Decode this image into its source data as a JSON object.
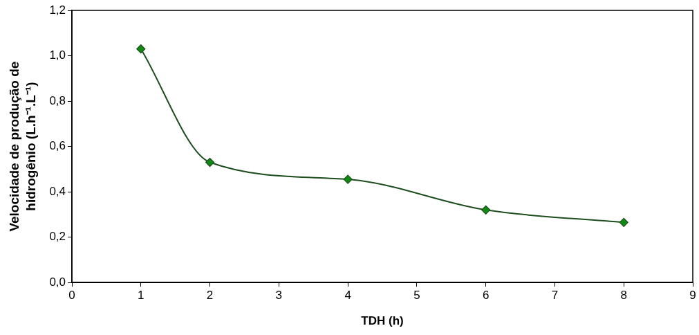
{
  "chart_data": {
    "type": "line",
    "xlabel": "TDH (h)",
    "ylabel": "Velocidade de produção de hidrogênio (L.h⁻¹.L⁻¹)",
    "x": [
      1,
      2,
      4,
      6,
      8
    ],
    "series": [
      {
        "color": "#1e4d1e",
        "values": [
          1.03,
          0.53,
          0.455,
          0.32,
          0.265
        ]
      }
    ],
    "xlim": [
      0,
      9
    ],
    "xticks": [
      0,
      1,
      2,
      3,
      4,
      5,
      6,
      7,
      8,
      9
    ],
    "ylim": [
      0,
      1.2
    ],
    "yticks": [
      {
        "value": 0,
        "label": "0,0"
      },
      {
        "value": 0.2,
        "label": "0,2"
      },
      {
        "value": 0.4,
        "label": "0,4"
      },
      {
        "value": 0.6,
        "label": "0,6"
      },
      {
        "value": 0.8,
        "label": "0,8"
      },
      {
        "value": 1,
        "label": "1,0"
      },
      {
        "value": 1.2,
        "label": "1,2"
      }
    ],
    "grid": false,
    "legend": false,
    "marker": "diamond",
    "line_style": "solid"
  }
}
